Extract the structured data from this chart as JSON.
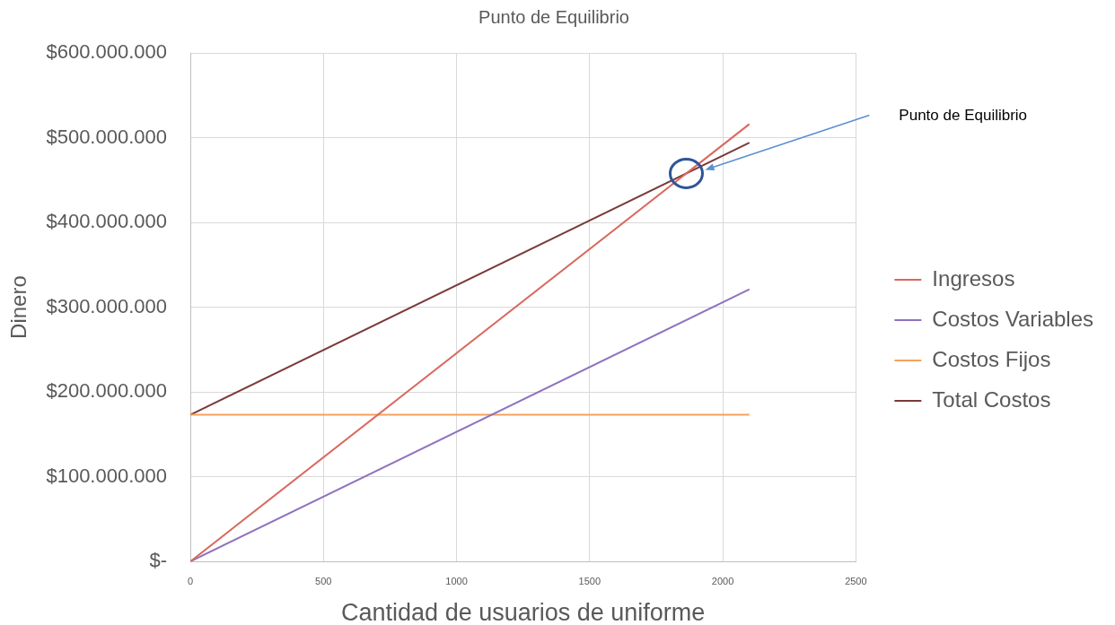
{
  "chart_data": {
    "type": "line",
    "title": "Punto de Equilibrio",
    "xlabel": "Cantidad de usuarios de uniforme",
    "ylabel": "Dinero",
    "x": [
      0,
      2100
    ],
    "series": [
      {
        "name": "Ingresos",
        "color": "#d9675e",
        "values": [
          0,
          516000000
        ]
      },
      {
        "name": "Costos Variables",
        "color": "#8e72bf",
        "values": [
          0,
          321000000
        ]
      },
      {
        "name": "Costos Fijos",
        "color": "#f6a15b",
        "values": [
          173000000,
          173000000
        ]
      },
      {
        "name": "Total Costos",
        "color": "#7b3a3a",
        "values": [
          173000000,
          494000000
        ]
      }
    ],
    "xlim": [
      0,
      2500
    ],
    "xticks": [
      0,
      500,
      1000,
      1500,
      2000,
      2500
    ],
    "ylim": [
      0,
      600000000
    ],
    "yticks": [
      {
        "value": 0,
        "label": "$-"
      },
      {
        "value": 100000000,
        "label": "$100.000.000"
      },
      {
        "value": 200000000,
        "label": "$200.000.000"
      },
      {
        "value": 300000000,
        "label": "$300.000.000"
      },
      {
        "value": 400000000,
        "label": "$400.000.000"
      },
      {
        "value": 500000000,
        "label": "$500.000.000"
      },
      {
        "value": 600000000,
        "label": "$600.000.000"
      }
    ],
    "grid": true,
    "legend": "right",
    "marker": "none",
    "line_style": "solid",
    "annotations": [
      "Punto de Equilibrio"
    ]
  }
}
